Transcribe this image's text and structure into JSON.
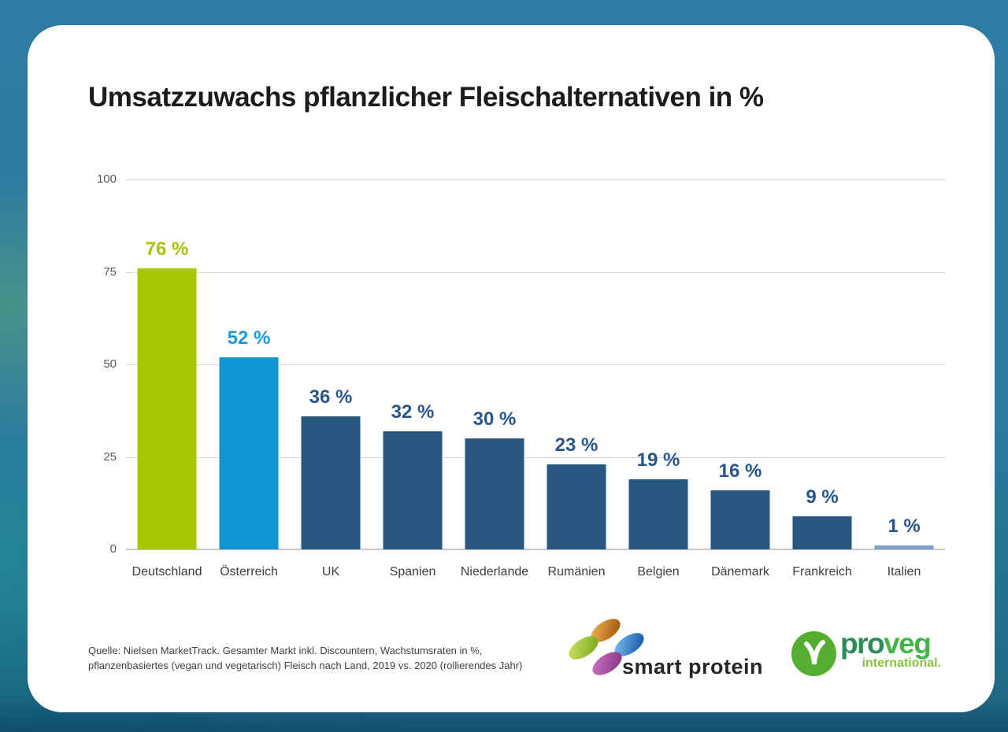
{
  "card": {
    "source_line1": "Quelle: Nielsen MarketTrack. Gesamter Markt inkl. Discountern, Wachstumsraten in %,",
    "source_line2": "pflanzenbasiertes (vegan und vegetarisch) Fleisch nach Land, 2019 vs. 2020 (rollierendes Jahr)"
  },
  "chart_data": {
    "type": "bar",
    "title": "Umsatzzuwachs pflanzlicher Fleischalternativen in %",
    "categories": [
      "Deutschland",
      "Österreich",
      "UK",
      "Spanien",
      "Niederlande",
      "Rumänien",
      "Belgien",
      "Dänemark",
      "Frankreich",
      "Italien"
    ],
    "values": [
      76,
      52,
      36,
      32,
      30,
      23,
      19,
      16,
      9,
      1
    ],
    "value_labels": [
      "76 %",
      "52 %",
      "36 %",
      "32 %",
      "30 %",
      "23 %",
      "19 %",
      "16 %",
      "9 %",
      "1 %"
    ],
    "bar_colors": [
      "#a8c606",
      "#1095d1",
      "#27567f",
      "#27567f",
      "#27567f",
      "#27567f",
      "#27567f",
      "#27567f",
      "#27567f",
      "#7d9fc9"
    ],
    "label_colors": [
      "#a2c40c",
      "#1b9ad6",
      "#27578a",
      "#27578a",
      "#27578a",
      "#27578a",
      "#27578a",
      "#27578a",
      "#27578a",
      "#27578a"
    ],
    "xlabel": "",
    "ylabel": "",
    "yticks": [
      0,
      25,
      50,
      75,
      100
    ],
    "ylim": [
      0,
      100
    ],
    "grid": true,
    "legend": false
  },
  "logos": {
    "smart_protein": "smart protein",
    "proveg_pro": "pro",
    "proveg_veg": "veg",
    "proveg_sub": "international."
  },
  "colors": {
    "background_teal": "#2e7ba3",
    "highlight_green": "#a8c606",
    "highlight_blue": "#1095d1",
    "bar_dark_blue": "#27567f",
    "bar_light_blue": "#7d9fc9",
    "proveg_green": "#46b549"
  }
}
